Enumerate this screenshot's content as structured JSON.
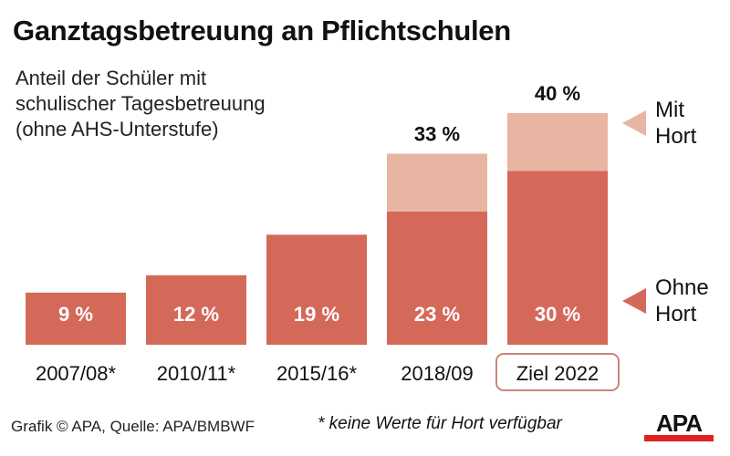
{
  "title": "Ganztagsbetreuung an Pflichtschulen",
  "subtitle_lines": [
    "Anteil der Schüler mit",
    "schulischer Tagesbetreuung",
    "(ohne AHS-Unterstufe)"
  ],
  "chart_data": {
    "type": "bar",
    "stacked": true,
    "categories": [
      "2007/08*",
      "2010/11*",
      "2015/16*",
      "2018/09",
      "Ziel 2022"
    ],
    "highlighted_category": "Ziel 2022",
    "series": [
      {
        "name": "Ohne Hort",
        "values": [
          9,
          12,
          19,
          23,
          30
        ],
        "labels": [
          "9 %",
          "12 %",
          "19 %",
          "23 %",
          "30 %"
        ],
        "color": "#d4695a"
      },
      {
        "name": "Mit Hort",
        "values": [
          null,
          null,
          null,
          10,
          10
        ],
        "color": "#e8b5a3"
      }
    ],
    "totals": [
      null,
      null,
      null,
      33,
      40
    ],
    "total_labels": [
      null,
      null,
      null,
      "33 %",
      "40 %"
    ],
    "legend": [
      {
        "label_lines": [
          "Mit",
          "Hort"
        ],
        "color": "#e8b5a3"
      },
      {
        "label_lines": [
          "Ohne",
          "Hort"
        ],
        "color": "#d4695a"
      }
    ],
    "legend_placement": "right",
    "ylim": [
      0,
      40
    ],
    "grid": false
  },
  "footer": {
    "source": "Grafik © APA, Quelle: APA/BMBWF",
    "note": "* keine Werte für Hort verfügbar"
  },
  "logo": "APA"
}
